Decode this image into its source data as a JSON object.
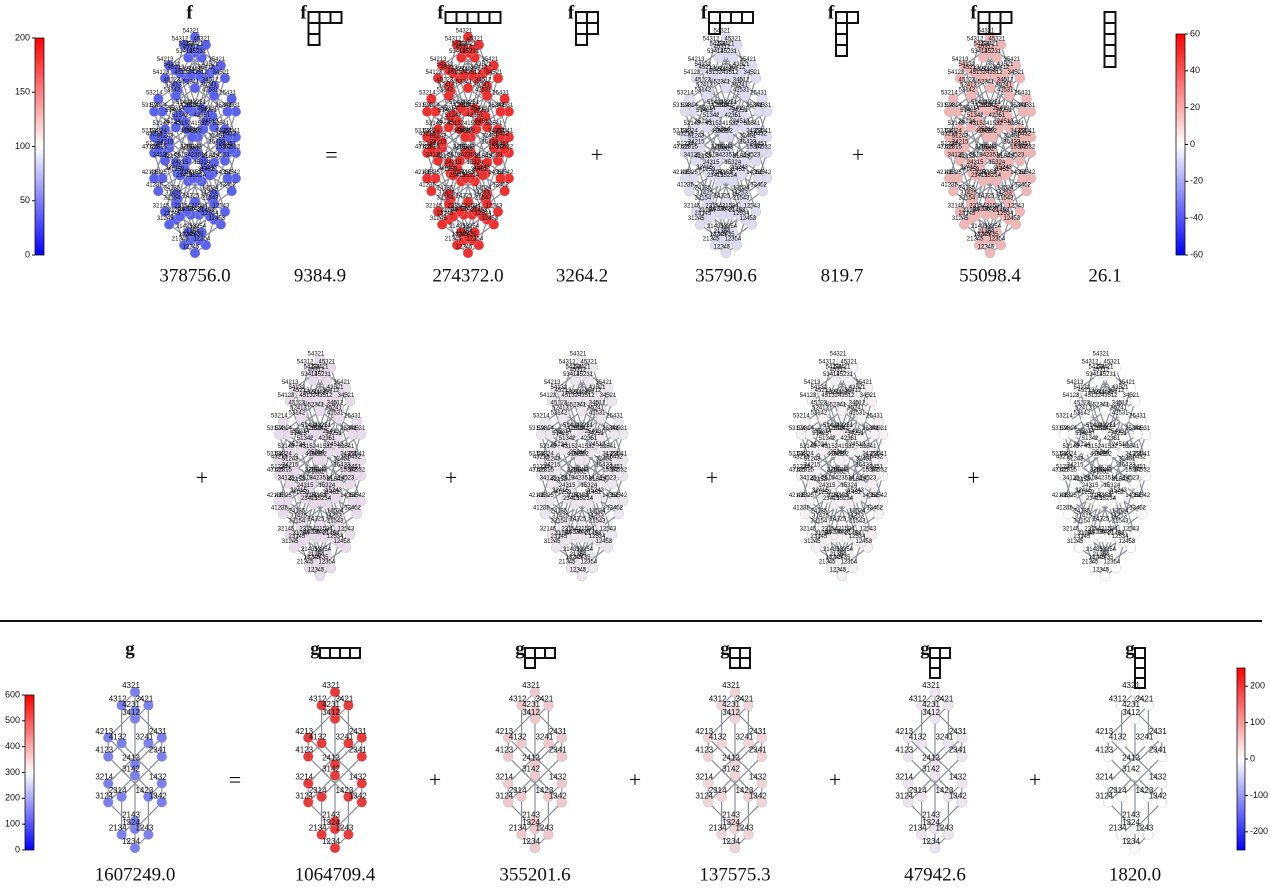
{
  "top": {
    "colorbar_left": {
      "lim": [
        0,
        200
      ],
      "ticks": [
        0,
        50,
        100,
        150,
        200
      ]
    },
    "colorbar_right": {
      "lim": [
        -60,
        60
      ],
      "ticks": [
        -60,
        -40,
        -20,
        0,
        20,
        40,
        60
      ]
    },
    "nodes": [
      "12345",
      "12354",
      "12435",
      "12453",
      "12534",
      "12543",
      "13245",
      "13254",
      "13425",
      "13452",
      "13524",
      "13542",
      "14235",
      "14253",
      "14325",
      "14352",
      "14523",
      "14532",
      "15234",
      "15243",
      "15324",
      "15342",
      "15423",
      "15432",
      "21345",
      "21354",
      "21435",
      "21453",
      "21534",
      "21543",
      "23145",
      "23154",
      "23415",
      "23451",
      "23514",
      "23541",
      "24135",
      "24153",
      "24315",
      "24351",
      "24513",
      "24531",
      "25134",
      "25143",
      "25314",
      "25341",
      "25413",
      "25431",
      "31245",
      "31254",
      "31425",
      "31452",
      "31524",
      "31542",
      "32145",
      "32154",
      "32415",
      "32451",
      "32514",
      "32541",
      "34125",
      "34152",
      "34215",
      "34251",
      "34512",
      "34521",
      "35124",
      "35142",
      "35214",
      "35241",
      "35412",
      "35421",
      "41235",
      "41253",
      "41325",
      "41352",
      "41523",
      "41532",
      "42135",
      "42153",
      "42315",
      "42351",
      "42513",
      "42531",
      "43125",
      "43152",
      "43215",
      "43251",
      "43512",
      "43521",
      "45123",
      "45132",
      "45213",
      "45231",
      "45312",
      "45321",
      "51234",
      "51243",
      "51324",
      "51342",
      "51423",
      "51432",
      "52134",
      "52143",
      "52314",
      "52341",
      "52413",
      "52431",
      "53124",
      "53142",
      "53214",
      "53241",
      "53412",
      "53421",
      "54123",
      "54132",
      "54213",
      "54231",
      "54312",
      "54321"
    ],
    "panels": [
      {
        "label": "f",
        "shape": [],
        "node_color": "#5a62ee",
        "value": "378756.0"
      },
      {
        "label": "f",
        "shape": [
          5
        ],
        "node_color": "#ee3030",
        "value": "274372.0",
        "operator": "="
      },
      {
        "label": "f",
        "shape": [
          4,
          1
        ],
        "node_color": "#dcdcf2",
        "value": "35790.6",
        "operator": "+"
      },
      {
        "label": "f",
        "shape": [
          3,
          2
        ],
        "node_color": "#f0b6b6",
        "value": "55098.4",
        "operator": "+"
      },
      {
        "label": "f",
        "shape": [
          3,
          1,
          1
        ],
        "node_color": "#e8dcec",
        "value": "9384.9",
        "operator": "+"
      },
      {
        "label": "f",
        "shape": [
          2,
          2,
          1
        ],
        "node_color": "#ece6ee",
        "value": "3264.2",
        "operator": "+"
      },
      {
        "label": "f",
        "shape": [
          2,
          1,
          1,
          1
        ],
        "node_color": "#f4f0f4",
        "value": "819.7",
        "operator": "+"
      },
      {
        "shape": [
          1,
          1,
          1,
          1,
          1
        ],
        "node_color": "#ffffff",
        "value": "26.1",
        "operator": "+"
      }
    ]
  },
  "bottom": {
    "colorbar_left": {
      "lim": [
        0,
        600
      ],
      "ticks": [
        0,
        100,
        200,
        300,
        400,
        500,
        600
      ]
    },
    "colorbar_right": {
      "lim": [
        -250,
        250
      ],
      "ticks": [
        -200,
        -100,
        0,
        100,
        200
      ]
    },
    "nodes": [
      "1234",
      "1243",
      "1324",
      "1342",
      "1423",
      "1432",
      "2134",
      "2143",
      "2314",
      "2341",
      "2413",
      "2431",
      "3124",
      "3142",
      "3214",
      "3241",
      "3412",
      "3421",
      "4123",
      "4132",
      "4213",
      "4231",
      "4312",
      "4321"
    ],
    "panels": [
      {
        "label": "g",
        "shape": [],
        "node_color": "#7a80ee",
        "value": "1607249.0"
      },
      {
        "label": "g",
        "shape": [
          4
        ],
        "node_color": "#ea3a3a",
        "value": "1064709.4",
        "operator": "="
      },
      {
        "label": "g",
        "shape": [
          3,
          1
        ],
        "node_color": "#eec8cc",
        "value": "355201.6",
        "operator": "+"
      },
      {
        "label": "g",
        "shape": [
          2,
          2
        ],
        "node_color": "#f0d4d8",
        "value": "137575.3",
        "operator": "+"
      },
      {
        "label": "g",
        "shape": [
          2,
          1,
          1
        ],
        "node_color": "#ece4ee",
        "value": "47942.6",
        "operator": "+"
      },
      {
        "label": "g",
        "shape": [
          1,
          1,
          1,
          1
        ],
        "node_color": "#ffffff",
        "value": "1820.0",
        "operator": "+"
      }
    ]
  }
}
